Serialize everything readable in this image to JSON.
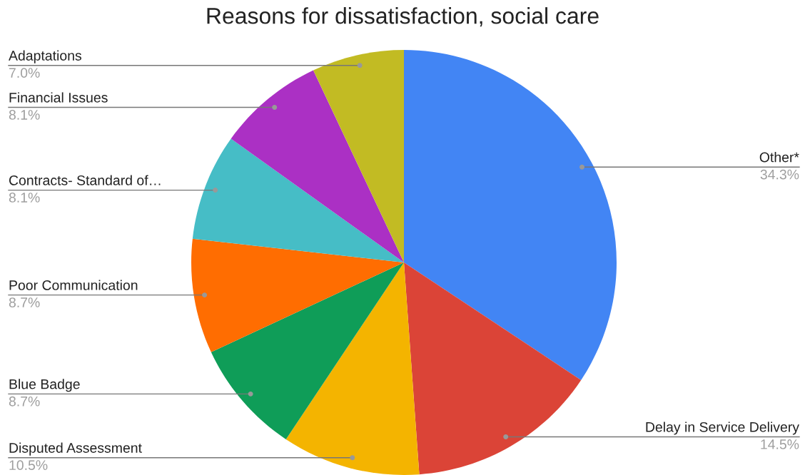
{
  "chart_data": {
    "type": "pie",
    "title": "Reasons for dissatisfaction, social care",
    "categories": [
      "Other*",
      "Delay in Service Delivery",
      "Disputed Assessment",
      "Blue Badge",
      "Poor Communication",
      "Contracts- Standard of…",
      "Financial Issues",
      "Adaptations"
    ],
    "values": [
      34.3,
      14.5,
      10.5,
      8.7,
      8.7,
      8.1,
      8.1,
      7.0
    ],
    "value_labels": [
      "34.3%",
      "14.5%",
      "10.5%",
      "8.7%",
      "8.7%",
      "8.1%",
      "8.1%",
      "7.0%"
    ],
    "colors": [
      "#4285f4",
      "#db4437",
      "#f4b400",
      "#0f9d58",
      "#ff6d01",
      "#46bdc6",
      "#ab30c4",
      "#c2bb23"
    ],
    "legend": false
  }
}
